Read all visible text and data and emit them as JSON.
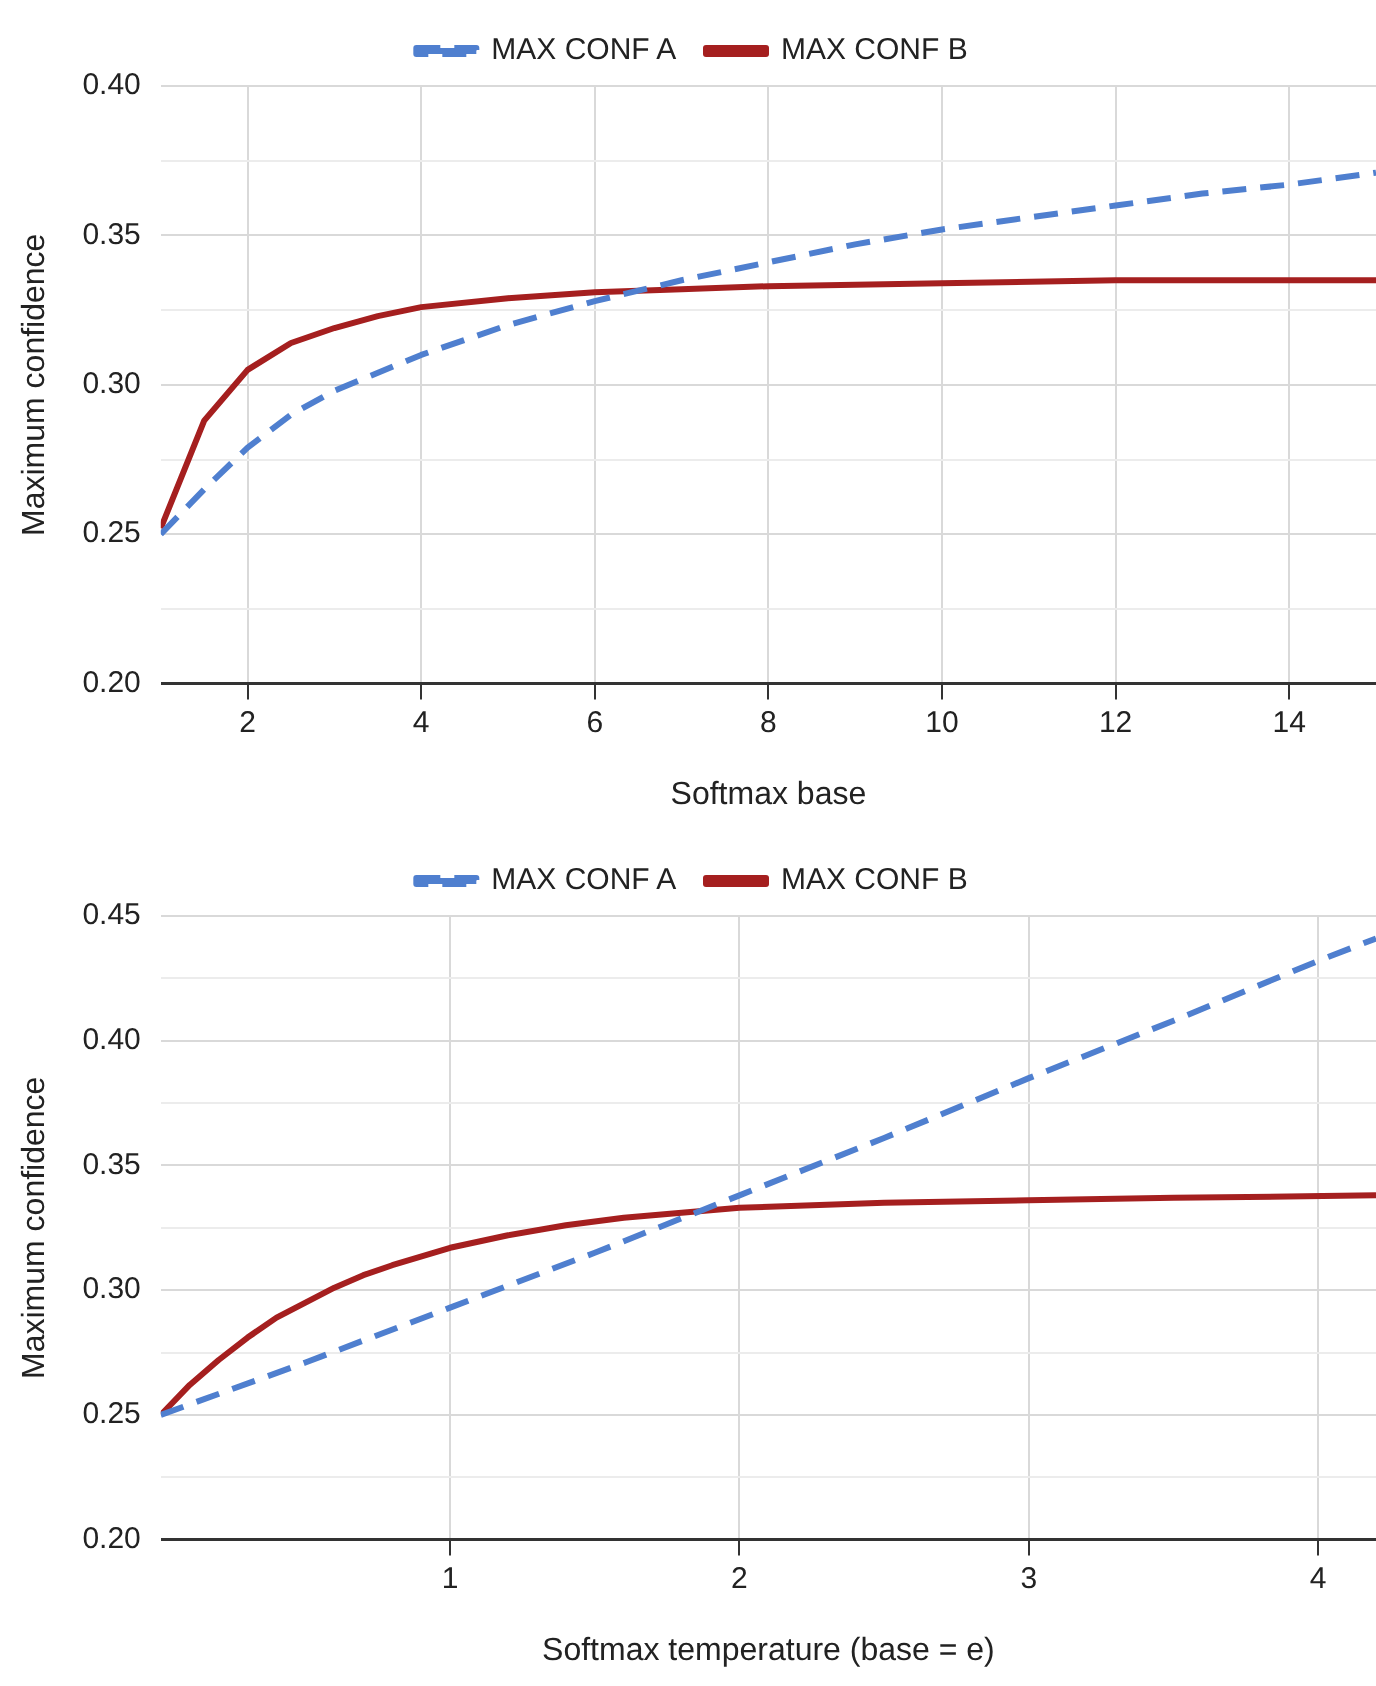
{
  "chart_data": [
    {
      "type": "line",
      "xlabel": "Softmax base",
      "ylabel": "Maximum confidence",
      "legend": "top",
      "grid": true,
      "marker": "none",
      "xlim": [
        1,
        15
      ],
      "xticks": [
        2,
        4,
        6,
        8,
        10,
        12,
        14
      ],
      "ylim": [
        0.2,
        0.4
      ],
      "yticks": [
        {
          "value": 0.2,
          "label": "0.20"
        },
        {
          "value": 0.225,
          "label": null
        },
        {
          "value": 0.25,
          "label": "0.25"
        },
        {
          "value": 0.275,
          "label": null
        },
        {
          "value": 0.3,
          "label": "0.30"
        },
        {
          "value": 0.325,
          "label": null
        },
        {
          "value": 0.35,
          "label": "0.35"
        },
        {
          "value": 0.375,
          "label": null
        },
        {
          "value": 0.4,
          "label": "0.40"
        }
      ],
      "series": [
        {
          "name": "MAX CONF A",
          "color": "#4f7fcf",
          "line_style": "dashed",
          "x": [
            1,
            1.5,
            2,
            2.5,
            3,
            4,
            5,
            6,
            7,
            8,
            9,
            10,
            11,
            12,
            13,
            14,
            15
          ],
          "values": [
            0.25,
            0.265,
            0.279,
            0.29,
            0.298,
            0.31,
            0.32,
            0.328,
            0.335,
            0.341,
            0.347,
            0.352,
            0.356,
            0.36,
            0.364,
            0.367,
            0.371
          ]
        },
        {
          "name": "MAX CONF B",
          "color": "#a51f1f",
          "line_style": "solid",
          "x": [
            1,
            1.5,
            2,
            2.5,
            3,
            3.5,
            4,
            5,
            6,
            7,
            8,
            10,
            12,
            15
          ],
          "values": [
            0.252,
            0.288,
            0.305,
            0.314,
            0.319,
            0.323,
            0.326,
            0.329,
            0.331,
            0.332,
            0.333,
            0.334,
            0.335,
            0.335
          ]
        }
      ]
    },
    {
      "type": "line",
      "xlabel": "Softmax temperature (base = e)",
      "ylabel": "Maximum confidence",
      "legend": "top",
      "grid": true,
      "marker": "none",
      "xlim": [
        0,
        4.2
      ],
      "xticks": [
        1,
        2,
        3,
        4
      ],
      "ylim": [
        0.2,
        0.45
      ],
      "yticks": [
        {
          "value": 0.2,
          "label": "0.20"
        },
        {
          "value": 0.225,
          "label": null
        },
        {
          "value": 0.25,
          "label": "0.25"
        },
        {
          "value": 0.275,
          "label": null
        },
        {
          "value": 0.3,
          "label": "0.30"
        },
        {
          "value": 0.325,
          "label": null
        },
        {
          "value": 0.35,
          "label": "0.35"
        },
        {
          "value": 0.375,
          "label": null
        },
        {
          "value": 0.4,
          "label": "0.40"
        },
        {
          "value": 0.425,
          "label": null
        },
        {
          "value": 0.45,
          "label": "0.45"
        }
      ],
      "series": [
        {
          "name": "MAX CONF A",
          "color": "#4f7fcf",
          "line_style": "dashed",
          "x": [
            0,
            0.5,
            1,
            1.5,
            2,
            2.5,
            3,
            3.5,
            4,
            4.2
          ],
          "values": [
            0.25,
            0.271,
            0.293,
            0.315,
            0.338,
            0.361,
            0.385,
            0.408,
            0.432,
            0.441
          ]
        },
        {
          "name": "MAX CONF B",
          "color": "#a51f1f",
          "line_style": "solid",
          "x": [
            0,
            0.1,
            0.2,
            0.3,
            0.4,
            0.5,
            0.6,
            0.7,
            0.8,
            1,
            1.2,
            1.4,
            1.6,
            1.8,
            2,
            2.5,
            3,
            3.5,
            4.2
          ],
          "values": [
            0.25,
            0.262,
            0.272,
            0.281,
            0.289,
            0.295,
            0.301,
            0.306,
            0.31,
            0.317,
            0.322,
            0.326,
            0.329,
            0.331,
            0.333,
            0.335,
            0.336,
            0.337,
            0.338
          ]
        }
      ]
    }
  ]
}
